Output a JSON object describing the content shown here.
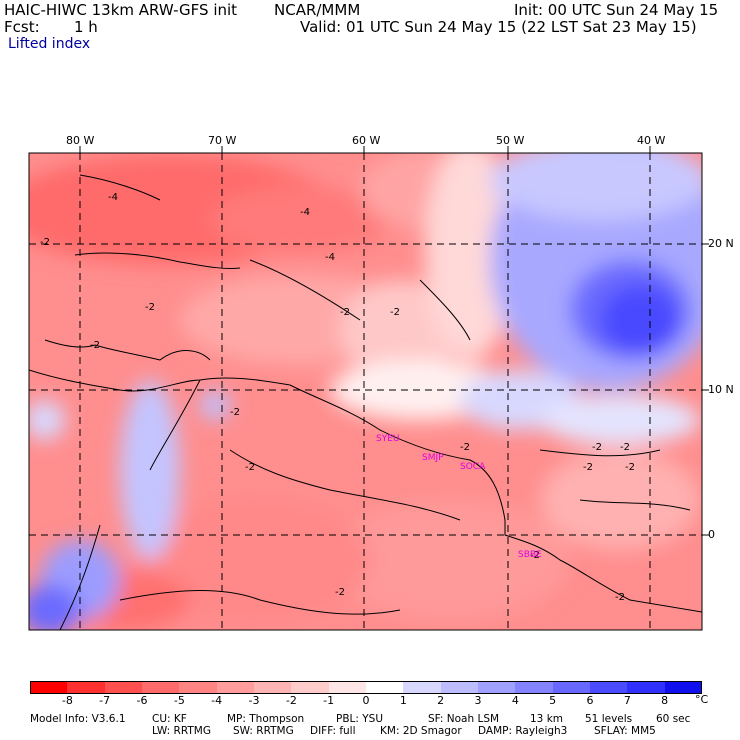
{
  "header": {
    "title_left": "HAIC-HIWC 13km ARW-GFS init",
    "org": "NCAR/MMM",
    "init": "Init: 00 UTC Sun 24 May 15",
    "fcst_label": "Fcst:",
    "fcst_value": "1 h",
    "valid": "Valid: 01 UTC Sun 24 May 15 (22 LST Sat 23 May 15)",
    "field": "Lifted index"
  },
  "map": {
    "lon_labels": [
      "80 W",
      "70 W",
      "60 W",
      "50 W",
      "40 W"
    ],
    "lat_labels": [
      "20 N",
      "10 N",
      "0"
    ],
    "contour_labels": [
      "-4",
      "-4",
      "-4",
      "-2",
      "-2",
      "-2",
      "-2",
      "-2",
      "-2",
      "-2",
      "-2",
      "-2",
      "-2",
      "-2",
      "-2",
      "-2",
      "-2",
      "-2"
    ],
    "stations": [
      "SYEU",
      "SMJP",
      "SOCA",
      "SBBE"
    ],
    "station_color": "#e000e0"
  },
  "colorbar": {
    "ticks": [
      "-8",
      "-7",
      "-6",
      "-5",
      "-4",
      "-3",
      "-2",
      "-1",
      "0",
      "1",
      "2",
      "3",
      "4",
      "5",
      "6",
      "7",
      "8"
    ],
    "unit": "°C",
    "colors": [
      "#ff0000",
      "#ff3030",
      "#ff5050",
      "#ff6a6a",
      "#ff8484",
      "#ff9c9c",
      "#ffb4b4",
      "#ffcccc",
      "#ffe6e6",
      "#ffffff",
      "#d8d8ff",
      "#bcbcff",
      "#a0a0ff",
      "#8484ff",
      "#6868ff",
      "#4c4cff",
      "#3030ff",
      "#1010ee"
    ]
  },
  "footer": {
    "line1": [
      "Model Info: V3.6.1",
      "CU: KF",
      "MP: Thompson",
      "PBL: YSU",
      "SF: Noah LSM",
      "13 km",
      "51 levels",
      "60 sec"
    ],
    "line2": [
      "LW: RRTMG",
      "SW: RRTMG",
      "DIFF: full",
      "KM: 2D Smagor",
      "DAMP: Rayleigh3",
      "SFLAY: MM5"
    ]
  }
}
